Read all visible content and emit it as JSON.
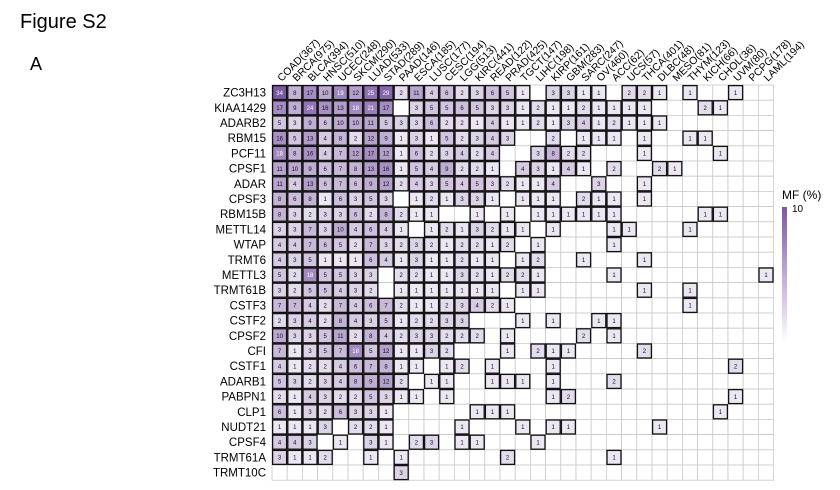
{
  "figure_title": "Figure S2",
  "panel_label": "A",
  "chart_data": {
    "type": "heatmap",
    "title": "",
    "legend_title": "MF (%)",
    "legend_max_label": "10",
    "colors": {
      "low": "#ffffff",
      "high": "#7b57a5",
      "grid": "#c9c9c9",
      "border": "#111111"
    },
    "x_categories": [
      "COAD(367)",
      "BRCA(975)",
      "BLCA(394)",
      "HNSC(510)",
      "UCEC(248)",
      "SKCM(290)",
      "LUAD(533)",
      "STAD(289)",
      "PAAD(146)",
      "ESCA(185)",
      "LUSC(177)",
      "CESC(194)",
      "LGG(513)",
      "KIRC(441)",
      "READ(122)",
      "PRAD(425)",
      "TGCT(147)",
      "LIHC(198)",
      "KIRP(161)",
      "GBM(283)",
      "SARC(247)",
      "OV(460)",
      "ACC(62)",
      "UCS(57)",
      "THCA(401)",
      "DLBC(48)",
      "MESO(81)",
      "THYM(123)",
      "KICH(66)",
      "CHOL(36)",
      "UVM(80)",
      "PCPG(178)",
      "LAML(194)"
    ],
    "y_categories": [
      "ZC3H13",
      "KIAA1429",
      "ADARB2",
      "RBM15",
      "PCF11",
      "CPSF1",
      "ADAR",
      "CPSF3",
      "RBM15B",
      "METTL14",
      "WTAP",
      "TRMT6",
      "METTL3",
      "TRMT61B",
      "CSTF3",
      "CSTF2",
      "CPSF2",
      "CFI",
      "CSTF1",
      "ADARB1",
      "PABPN1",
      "CLP1",
      "NUDT21",
      "CPSF4",
      "TRMT61A",
      "TRMT10C"
    ],
    "values": [
      [
        34,
        8,
        17,
        10,
        19,
        12,
        25,
        29,
        2,
        11,
        4,
        6,
        2,
        3,
        6,
        5,
        1,
        null,
        3,
        3,
        1,
        1,
        null,
        2,
        2,
        1,
        null,
        1,
        null,
        null,
        1,
        null,
        null
      ],
      [
        17,
        9,
        24,
        16,
        13,
        18,
        21,
        17,
        null,
        3,
        5,
        5,
        6,
        5,
        3,
        3,
        1,
        2,
        1,
        1,
        2,
        1,
        1,
        1,
        1,
        null,
        null,
        null,
        2,
        1,
        null,
        null,
        null
      ],
      [
        5,
        3,
        9,
        6,
        10,
        10,
        11,
        5,
        3,
        3,
        6,
        2,
        2,
        1,
        4,
        1,
        1,
        2,
        1,
        3,
        4,
        1,
        2,
        1,
        1,
        1,
        null,
        null,
        null,
        null,
        null,
        null,
        null
      ],
      [
        16,
        5,
        13,
        4,
        8,
        2,
        12,
        9,
        1,
        3,
        1,
        5,
        2,
        3,
        4,
        3,
        null,
        null,
        2,
        null,
        1,
        1,
        1,
        null,
        1,
        null,
        null,
        1,
        1,
        null,
        null,
        null,
        null
      ],
      [
        18,
        8,
        16,
        4,
        7,
        12,
        17,
        12,
        1,
        6,
        2,
        3,
        4,
        2,
        4,
        null,
        null,
        3,
        8,
        2,
        2,
        null,
        null,
        null,
        1,
        null,
        null,
        null,
        null,
        1,
        null,
        null,
        null
      ],
      [
        11,
        10,
        9,
        6,
        7,
        8,
        13,
        16,
        1,
        5,
        4,
        9,
        2,
        2,
        1,
        null,
        4,
        3,
        1,
        4,
        1,
        null,
        2,
        null,
        null,
        2,
        1,
        null,
        null,
        null,
        null,
        null,
        null
      ],
      [
        11,
        4,
        13,
        6,
        7,
        6,
        9,
        12,
        2,
        4,
        3,
        5,
        4,
        5,
        3,
        2,
        1,
        1,
        4,
        null,
        null,
        3,
        null,
        null,
        1,
        null,
        null,
        null,
        null,
        null,
        null,
        null,
        null
      ],
      [
        8,
        6,
        8,
        1,
        6,
        3,
        5,
        3,
        null,
        1,
        2,
        1,
        3,
        3,
        1,
        null,
        1,
        1,
        1,
        null,
        2,
        1,
        1,
        null,
        1,
        null,
        null,
        null,
        null,
        null,
        null,
        null,
        null
      ],
      [
        8,
        3,
        2,
        3,
        3,
        6,
        2,
        8,
        2,
        1,
        1,
        null,
        null,
        1,
        null,
        1,
        null,
        1,
        1,
        1,
        1,
        1,
        1,
        null,
        null,
        null,
        null,
        null,
        1,
        1,
        null,
        null,
        null
      ],
      [
        3,
        3,
        7,
        3,
        10,
        4,
        6,
        4,
        1,
        null,
        1,
        2,
        1,
        3,
        2,
        1,
        1,
        null,
        1,
        null,
        null,
        null,
        1,
        1,
        null,
        null,
        null,
        1,
        null,
        null,
        null,
        null,
        null
      ],
      [
        4,
        4,
        7,
        6,
        5,
        2,
        7,
        3,
        2,
        3,
        2,
        1,
        2,
        2,
        1,
        2,
        null,
        1,
        null,
        null,
        null,
        null,
        1,
        null,
        null,
        null,
        null,
        null,
        null,
        null,
        null,
        null,
        null
      ],
      [
        4,
        3,
        5,
        1,
        1,
        1,
        6,
        4,
        1,
        3,
        1,
        1,
        2,
        1,
        1,
        null,
        1,
        2,
        null,
        null,
        1,
        null,
        null,
        null,
        1,
        null,
        null,
        null,
        null,
        null,
        null,
        null,
        null
      ],
      [
        5,
        2,
        18,
        5,
        5,
        3,
        3,
        null,
        2,
        2,
        1,
        1,
        3,
        2,
        1,
        2,
        2,
        1,
        null,
        null,
        null,
        null,
        1,
        null,
        null,
        null,
        null,
        null,
        null,
        null,
        null,
        null,
        1
      ],
      [
        3,
        2,
        5,
        5,
        4,
        3,
        2,
        null,
        1,
        1,
        1,
        1,
        1,
        1,
        1,
        null,
        1,
        1,
        null,
        null,
        null,
        null,
        null,
        null,
        1,
        null,
        null,
        1,
        null,
        null,
        null,
        null,
        null
      ],
      [
        7,
        7,
        4,
        2,
        7,
        4,
        6,
        7,
        2,
        1,
        1,
        2,
        3,
        4,
        2,
        1,
        null,
        null,
        null,
        null,
        null,
        null,
        null,
        null,
        null,
        null,
        null,
        1,
        null,
        null,
        null,
        null,
        null
      ],
      [
        2,
        3,
        4,
        2,
        8,
        4,
        3,
        5,
        1,
        2,
        2,
        3,
        3,
        null,
        null,
        null,
        1,
        null,
        1,
        null,
        null,
        1,
        1,
        null,
        null,
        null,
        null,
        null,
        null,
        null,
        null,
        null,
        null
      ],
      [
        10,
        3,
        3,
        5,
        11,
        2,
        8,
        4,
        2,
        3,
        3,
        2,
        2,
        2,
        null,
        1,
        null,
        null,
        null,
        null,
        2,
        null,
        1,
        null,
        null,
        null,
        null,
        null,
        null,
        null,
        null,
        null,
        null
      ],
      [
        7,
        1,
        3,
        5,
        7,
        18,
        5,
        12,
        1,
        1,
        3,
        2,
        null,
        null,
        null,
        1,
        null,
        2,
        1,
        1,
        null,
        null,
        null,
        null,
        2,
        null,
        null,
        null,
        null,
        null,
        null,
        null,
        null
      ],
      [
        4,
        1,
        2,
        2,
        4,
        6,
        7,
        8,
        1,
        1,
        null,
        1,
        2,
        null,
        1,
        null,
        null,
        null,
        1,
        null,
        null,
        null,
        null,
        null,
        null,
        null,
        null,
        null,
        null,
        null,
        2,
        null,
        null
      ],
      [
        5,
        3,
        2,
        3,
        4,
        8,
        9,
        12,
        2,
        null,
        1,
        1,
        null,
        null,
        1,
        1,
        1,
        null,
        1,
        null,
        null,
        null,
        2,
        null,
        null,
        null,
        null,
        null,
        null,
        null,
        null,
        null,
        null
      ],
      [
        2,
        1,
        4,
        3,
        2,
        2,
        5,
        3,
        1,
        1,
        null,
        1,
        null,
        null,
        null,
        null,
        null,
        null,
        1,
        2,
        null,
        null,
        null,
        null,
        null,
        null,
        null,
        null,
        null,
        null,
        1,
        null,
        null
      ],
      [
        6,
        1,
        3,
        2,
        6,
        3,
        3,
        1,
        null,
        null,
        null,
        null,
        null,
        1,
        1,
        1,
        null,
        null,
        null,
        null,
        null,
        null,
        null,
        null,
        null,
        null,
        null,
        null,
        null,
        1,
        null,
        null,
        null
      ],
      [
        1,
        1,
        1,
        3,
        null,
        2,
        2,
        1,
        null,
        null,
        null,
        null,
        1,
        null,
        null,
        null,
        1,
        null,
        1,
        1,
        null,
        null,
        null,
        null,
        null,
        1,
        null,
        null,
        null,
        null,
        null,
        null,
        null
      ],
      [
        4,
        4,
        3,
        null,
        1,
        null,
        3,
        1,
        null,
        2,
        3,
        null,
        1,
        1,
        null,
        null,
        null,
        1,
        null,
        null,
        null,
        null,
        null,
        null,
        null,
        null,
        null,
        null,
        null,
        null,
        null,
        null,
        null
      ],
      [
        3,
        1,
        1,
        2,
        null,
        null,
        1,
        null,
        1,
        null,
        null,
        null,
        null,
        null,
        null,
        2,
        null,
        null,
        null,
        null,
        null,
        null,
        1,
        null,
        null,
        null,
        null,
        null,
        null,
        null,
        null,
        null,
        null
      ],
      [
        null,
        null,
        null,
        null,
        null,
        null,
        null,
        null,
        3,
        null,
        null,
        null,
        null,
        null,
        null,
        null,
        null,
        null,
        null,
        null,
        null,
        null,
        null,
        null,
        null,
        null,
        null,
        null,
        null,
        null,
        null,
        null,
        null
      ]
    ],
    "color_scale_max": 34
  }
}
